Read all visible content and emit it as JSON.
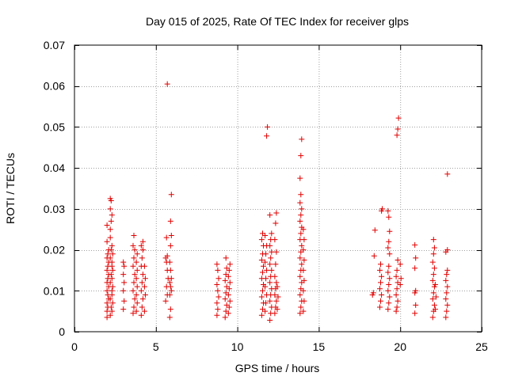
{
  "chart_data": {
    "type": "scatter",
    "title": "Day 015 of 2025, Rate Of TEC Index for receiver glps",
    "xlabel": "GPS time / hours",
    "ylabel": "ROTI / TECUs",
    "xlim": [
      0,
      25
    ],
    "ylim": [
      0,
      0.07
    ],
    "xticks": [
      0,
      5,
      10,
      15,
      20,
      25
    ],
    "xtick_labels": [
      "0",
      "5",
      "10",
      "15",
      "20",
      "25"
    ],
    "yticks": [
      0,
      0.01,
      0.02,
      0.03,
      0.04,
      0.05,
      0.06,
      0.07
    ],
    "ytick_labels": [
      "0",
      "0.01",
      "0.02",
      "0.03",
      "0.04",
      "0.05",
      "0.06",
      "0.07"
    ],
    "grid": true,
    "marker": "+",
    "marker_color": "#e00000",
    "series": [
      {
        "name": "ROTI",
        "points": [
          [
            2.0,
            0.0035
          ],
          [
            2.0,
            0.005
          ],
          [
            2.05,
            0.006
          ],
          [
            2.0,
            0.007
          ],
          [
            2.1,
            0.008
          ],
          [
            2.05,
            0.009
          ],
          [
            2.0,
            0.01
          ],
          [
            2.1,
            0.011
          ],
          [
            2.0,
            0.012
          ],
          [
            2.05,
            0.013
          ],
          [
            2.1,
            0.014
          ],
          [
            2.0,
            0.015
          ],
          [
            2.05,
            0.016
          ],
          [
            2.1,
            0.017
          ],
          [
            2.0,
            0.018
          ],
          [
            2.05,
            0.019
          ],
          [
            2.1,
            0.02
          ],
          [
            2.0,
            0.022
          ],
          [
            2.0,
            0.026
          ],
          [
            2.2,
            0.004
          ],
          [
            2.25,
            0.006
          ],
          [
            2.2,
            0.008
          ],
          [
            2.3,
            0.01
          ],
          [
            2.2,
            0.012
          ],
          [
            2.25,
            0.014
          ],
          [
            2.3,
            0.016
          ],
          [
            2.2,
            0.018
          ],
          [
            2.25,
            0.02
          ],
          [
            2.3,
            0.021
          ],
          [
            2.2,
            0.023
          ],
          [
            2.2,
            0.025
          ],
          [
            2.25,
            0.027
          ],
          [
            2.3,
            0.0285
          ],
          [
            2.2,
            0.03
          ],
          [
            2.25,
            0.032
          ],
          [
            2.2,
            0.0325
          ],
          [
            2.3,
            0.005
          ],
          [
            2.35,
            0.007
          ],
          [
            2.3,
            0.009
          ],
          [
            2.35,
            0.011
          ],
          [
            2.3,
            0.013
          ],
          [
            2.35,
            0.015
          ],
          [
            2.3,
            0.017
          ],
          [
            2.35,
            0.019
          ],
          [
            3.0,
            0.0055
          ],
          [
            3.05,
            0.0075
          ],
          [
            3.0,
            0.01
          ],
          [
            3.05,
            0.012
          ],
          [
            3.0,
            0.014
          ],
          [
            3.05,
            0.016
          ],
          [
            3.0,
            0.017
          ],
          [
            3.6,
            0.0045
          ],
          [
            3.65,
            0.006
          ],
          [
            3.7,
            0.008
          ],
          [
            3.6,
            0.01
          ],
          [
            3.65,
            0.012
          ],
          [
            3.7,
            0.014
          ],
          [
            3.6,
            0.016
          ],
          [
            3.65,
            0.018
          ],
          [
            3.7,
            0.02
          ],
          [
            3.6,
            0.021
          ],
          [
            3.65,
            0.0235
          ],
          [
            3.8,
            0.005
          ],
          [
            3.85,
            0.007
          ],
          [
            3.8,
            0.009
          ],
          [
            3.85,
            0.011
          ],
          [
            3.8,
            0.013
          ],
          [
            3.85,
            0.015
          ],
          [
            3.8,
            0.017
          ],
          [
            3.85,
            0.019
          ],
          [
            4.1,
            0.004
          ],
          [
            4.15,
            0.006
          ],
          [
            4.2,
            0.008
          ],
          [
            4.1,
            0.01
          ],
          [
            4.15,
            0.012
          ],
          [
            4.2,
            0.014
          ],
          [
            4.1,
            0.016
          ],
          [
            4.15,
            0.018
          ],
          [
            4.2,
            0.02
          ],
          [
            4.1,
            0.021
          ],
          [
            4.2,
            0.022
          ],
          [
            4.3,
            0.005
          ],
          [
            4.35,
            0.009
          ],
          [
            4.3,
            0.011
          ],
          [
            4.35,
            0.013
          ],
          [
            4.3,
            0.016
          ],
          [
            5.6,
            0.0075
          ],
          [
            5.7,
            0.009
          ],
          [
            5.65,
            0.011
          ],
          [
            5.75,
            0.013
          ],
          [
            5.7,
            0.015
          ],
          [
            5.65,
            0.017
          ],
          [
            5.6,
            0.018
          ],
          [
            5.7,
            0.0185
          ],
          [
            5.65,
            0.023
          ],
          [
            5.7,
            0.0605
          ],
          [
            5.85,
            0.0035
          ],
          [
            5.9,
            0.0055
          ],
          [
            5.85,
            0.009
          ],
          [
            5.95,
            0.01
          ],
          [
            5.9,
            0.011
          ],
          [
            5.85,
            0.012
          ],
          [
            5.95,
            0.013
          ],
          [
            5.9,
            0.015
          ],
          [
            5.85,
            0.017
          ],
          [
            5.9,
            0.021
          ],
          [
            5.95,
            0.0235
          ],
          [
            5.9,
            0.027
          ],
          [
            5.95,
            0.0335
          ],
          [
            8.75,
            0.004
          ],
          [
            8.8,
            0.0055
          ],
          [
            8.75,
            0.007
          ],
          [
            8.85,
            0.0085
          ],
          [
            8.8,
            0.01
          ],
          [
            8.75,
            0.0115
          ],
          [
            8.85,
            0.013
          ],
          [
            8.8,
            0.015
          ],
          [
            8.75,
            0.0165
          ],
          [
            9.25,
            0.0035
          ],
          [
            9.3,
            0.005
          ],
          [
            9.35,
            0.0065
          ],
          [
            9.25,
            0.008
          ],
          [
            9.3,
            0.0095
          ],
          [
            9.35,
            0.011
          ],
          [
            9.25,
            0.0125
          ],
          [
            9.3,
            0.014
          ],
          [
            9.35,
            0.0155
          ],
          [
            9.3,
            0.018
          ],
          [
            9.45,
            0.0045
          ],
          [
            9.5,
            0.006
          ],
          [
            9.55,
            0.0075
          ],
          [
            9.45,
            0.009
          ],
          [
            9.5,
            0.0105
          ],
          [
            9.55,
            0.012
          ],
          [
            9.45,
            0.0135
          ],
          [
            9.5,
            0.015
          ],
          [
            9.55,
            0.0165
          ],
          [
            11.5,
            0.004
          ],
          [
            11.55,
            0.0055
          ],
          [
            11.6,
            0.007
          ],
          [
            11.5,
            0.0085
          ],
          [
            11.55,
            0.01
          ],
          [
            11.6,
            0.0115
          ],
          [
            11.5,
            0.013
          ],
          [
            11.55,
            0.0145
          ],
          [
            11.6,
            0.016
          ],
          [
            11.5,
            0.0175
          ],
          [
            11.55,
            0.019
          ],
          [
            11.6,
            0.021
          ],
          [
            11.5,
            0.0225
          ],
          [
            11.55,
            0.024
          ],
          [
            11.7,
            0.005
          ],
          [
            11.75,
            0.007
          ],
          [
            11.8,
            0.009
          ],
          [
            11.7,
            0.011
          ],
          [
            11.75,
            0.013
          ],
          [
            11.8,
            0.015
          ],
          [
            11.7,
            0.017
          ],
          [
            11.75,
            0.019
          ],
          [
            11.8,
            0.021
          ],
          [
            11.7,
            0.0235
          ],
          [
            11.8,
            0.0478
          ],
          [
            11.85,
            0.05
          ],
          [
            12.0,
            0.0028
          ],
          [
            12.05,
            0.0045
          ],
          [
            12.1,
            0.006
          ],
          [
            12.0,
            0.0075
          ],
          [
            12.05,
            0.009
          ],
          [
            12.1,
            0.0105
          ],
          [
            12.0,
            0.012
          ],
          [
            12.05,
            0.0135
          ],
          [
            12.1,
            0.015
          ],
          [
            12.0,
            0.0165
          ],
          [
            12.05,
            0.018
          ],
          [
            12.1,
            0.0195
          ],
          [
            12.0,
            0.021
          ],
          [
            12.05,
            0.0225
          ],
          [
            12.1,
            0.024
          ],
          [
            12.0,
            0.0285
          ],
          [
            12.3,
            0.0045
          ],
          [
            12.35,
            0.006
          ],
          [
            12.4,
            0.0075
          ],
          [
            12.3,
            0.009
          ],
          [
            12.35,
            0.0105
          ],
          [
            12.4,
            0.012
          ],
          [
            12.3,
            0.0135
          ],
          [
            12.35,
            0.0165
          ],
          [
            12.4,
            0.0195
          ],
          [
            12.3,
            0.0225
          ],
          [
            12.35,
            0.0265
          ],
          [
            12.4,
            0.029
          ],
          [
            12.45,
            0.0055
          ],
          [
            12.5,
            0.0085
          ],
          [
            12.45,
            0.011
          ],
          [
            13.85,
            0.0045
          ],
          [
            13.9,
            0.006
          ],
          [
            13.95,
            0.0075
          ],
          [
            13.85,
            0.009
          ],
          [
            13.9,
            0.0105
          ],
          [
            13.95,
            0.012
          ],
          [
            13.85,
            0.0135
          ],
          [
            13.9,
            0.015
          ],
          [
            13.95,
            0.0165
          ],
          [
            13.85,
            0.018
          ],
          [
            13.9,
            0.0195
          ],
          [
            13.95,
            0.021
          ],
          [
            13.85,
            0.0225
          ],
          [
            13.9,
            0.024
          ],
          [
            13.95,
            0.0255
          ],
          [
            13.85,
            0.027
          ],
          [
            13.9,
            0.0285
          ],
          [
            13.95,
            0.03
          ],
          [
            13.85,
            0.0315
          ],
          [
            13.9,
            0.0335
          ],
          [
            13.85,
            0.0375
          ],
          [
            13.9,
            0.043
          ],
          [
            13.95,
            0.047
          ],
          [
            14.05,
            0.005
          ],
          [
            14.1,
            0.0075
          ],
          [
            14.05,
            0.01
          ],
          [
            14.1,
            0.0125
          ],
          [
            14.05,
            0.015
          ],
          [
            14.1,
            0.0175
          ],
          [
            14.05,
            0.02
          ],
          [
            14.1,
            0.0225
          ],
          [
            14.05,
            0.025
          ],
          [
            18.3,
            0.009
          ],
          [
            18.35,
            0.0095
          ],
          [
            18.4,
            0.0185
          ],
          [
            18.45,
            0.0248
          ],
          [
            18.75,
            0.006
          ],
          [
            18.8,
            0.0075
          ],
          [
            18.85,
            0.009
          ],
          [
            18.75,
            0.0105
          ],
          [
            18.8,
            0.012
          ],
          [
            18.85,
            0.0135
          ],
          [
            18.75,
            0.015
          ],
          [
            18.8,
            0.0165
          ],
          [
            18.85,
            0.0295
          ],
          [
            18.9,
            0.03
          ],
          [
            19.25,
            0.0055
          ],
          [
            19.3,
            0.007
          ],
          [
            19.35,
            0.0085
          ],
          [
            19.25,
            0.01
          ],
          [
            19.3,
            0.0115
          ],
          [
            19.35,
            0.013
          ],
          [
            19.25,
            0.0145
          ],
          [
            19.3,
            0.016
          ],
          [
            19.35,
            0.019
          ],
          [
            19.25,
            0.0205
          ],
          [
            19.3,
            0.022
          ],
          [
            19.35,
            0.0245
          ],
          [
            19.3,
            0.028
          ],
          [
            19.25,
            0.0295
          ],
          [
            19.75,
            0.005
          ],
          [
            19.8,
            0.006
          ],
          [
            19.85,
            0.0075
          ],
          [
            19.75,
            0.009
          ],
          [
            19.8,
            0.0105
          ],
          [
            19.85,
            0.012
          ],
          [
            19.75,
            0.0135
          ],
          [
            19.8,
            0.015
          ],
          [
            19.85,
            0.0175
          ],
          [
            19.8,
            0.048
          ],
          [
            19.85,
            0.0495
          ],
          [
            19.9,
            0.0522
          ],
          [
            20.0,
            0.0115
          ],
          [
            20.05,
            0.013
          ],
          [
            20.0,
            0.0165
          ],
          [
            20.9,
            0.0045
          ],
          [
            20.95,
            0.0065
          ],
          [
            20.9,
            0.0095
          ],
          [
            20.95,
            0.01
          ],
          [
            20.9,
            0.0155
          ],
          [
            20.95,
            0.018
          ],
          [
            20.9,
            0.0212
          ],
          [
            22.0,
            0.0035
          ],
          [
            22.05,
            0.005
          ],
          [
            22.1,
            0.0065
          ],
          [
            22.0,
            0.008
          ],
          [
            22.05,
            0.0095
          ],
          [
            22.1,
            0.011
          ],
          [
            22.0,
            0.0125
          ],
          [
            22.05,
            0.014
          ],
          [
            22.1,
            0.0155
          ],
          [
            22.0,
            0.017
          ],
          [
            22.05,
            0.019
          ],
          [
            22.1,
            0.0205
          ],
          [
            22.05,
            0.0225
          ],
          [
            22.15,
            0.0055
          ],
          [
            22.2,
            0.0085
          ],
          [
            22.15,
            0.0115
          ],
          [
            22.8,
            0.0035
          ],
          [
            22.85,
            0.005
          ],
          [
            22.9,
            0.0065
          ],
          [
            22.8,
            0.008
          ],
          [
            22.85,
            0.0095
          ],
          [
            22.9,
            0.011
          ],
          [
            22.8,
            0.0125
          ],
          [
            22.85,
            0.014
          ],
          [
            22.9,
            0.015
          ],
          [
            22.8,
            0.0195
          ],
          [
            22.9,
            0.02
          ],
          [
            22.9,
            0.0385
          ]
        ]
      }
    ]
  }
}
